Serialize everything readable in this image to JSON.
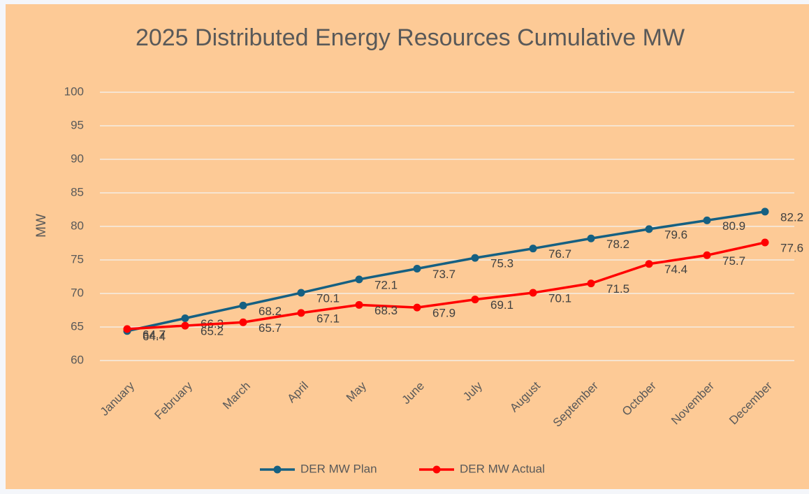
{
  "chart_data": {
    "type": "line",
    "title": "2025  Distributed Energy Resources Cumulative MW",
    "y_label": "MW",
    "categories": [
      "January",
      "February",
      "March",
      "April",
      "May",
      "June",
      "July",
      "August",
      "September",
      "October",
      "November",
      "December"
    ],
    "series": [
      {
        "name": "DER MW Plan",
        "color": "#156082",
        "values": [
          64.4,
          66.3,
          68.2,
          70.1,
          72.1,
          73.7,
          75.3,
          76.7,
          78.2,
          79.6,
          80.9,
          82.2
        ]
      },
      {
        "name": "DER MW Actual",
        "color": "#ff0000",
        "values": [
          64.7,
          65.2,
          65.7,
          67.1,
          68.3,
          67.9,
          69.1,
          70.1,
          71.5,
          74.4,
          75.7,
          77.6
        ]
      }
    ],
    "ylim": [
      60,
      100
    ],
    "yticks": [
      60,
      65,
      70,
      75,
      80,
      85,
      90,
      95,
      100
    ],
    "grid": true,
    "legend": "bottom",
    "data_labels": true
  }
}
